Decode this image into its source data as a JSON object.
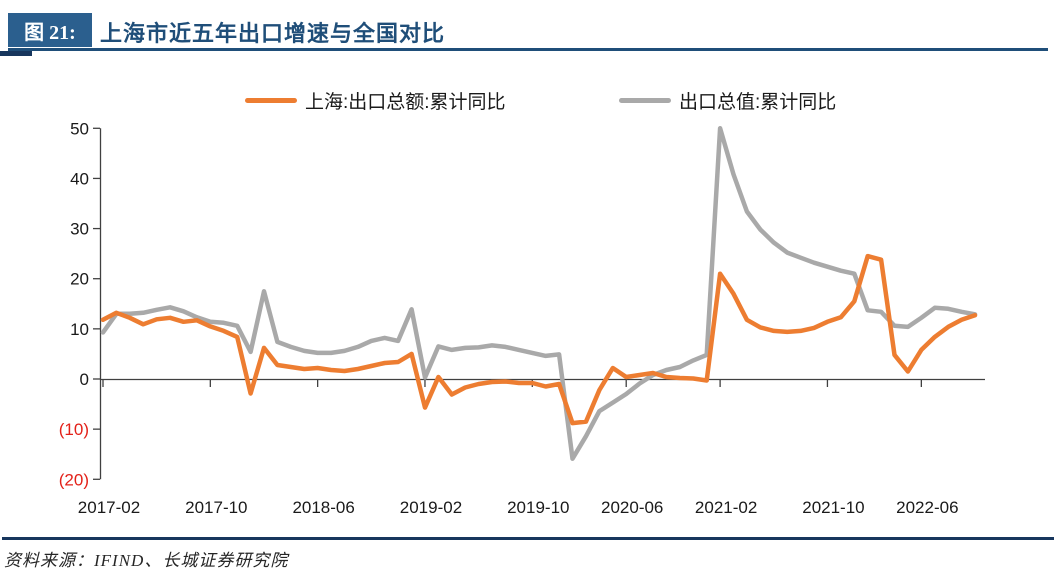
{
  "figure": {
    "tag": "图 21:",
    "title": "上海市近五年出口增速与全国对比"
  },
  "legend": [
    {
      "label": "上海:出口总额:累计同比",
      "color": "#ED7D31"
    },
    {
      "label": "出口总值:累计同比",
      "color": "#A9A9A9"
    }
  ],
  "source": "资料来源：IFIND、长城证券研究院",
  "colors": {
    "navy_box": "#2b5f8e",
    "navy_title": "#1f4e79",
    "navy_rule": "#1f4e79",
    "navy_separator": "#17365d",
    "axis_line": "#404040",
    "axis_label": "#1a1a1a",
    "negative_label": "#e32119",
    "shanghai_line": "#ED7D31",
    "china_line": "#A9A9A9"
  },
  "chart_data": {
    "type": "line",
    "title": "上海市近五年出口增速与全国对比",
    "xlabel": "",
    "ylabel": "",
    "ylim": [
      -20,
      50
    ],
    "grid": false,
    "legend_position": "top",
    "x": [
      "2017-02",
      "2017-03",
      "2017-04",
      "2017-05",
      "2017-06",
      "2017-07",
      "2017-08",
      "2017-09",
      "2017-10",
      "2017-11",
      "2017-12",
      "2018-01",
      "2018-02",
      "2018-03",
      "2018-04",
      "2018-05",
      "2018-06",
      "2018-07",
      "2018-08",
      "2018-09",
      "2018-10",
      "2018-11",
      "2018-12",
      "2019-01",
      "2019-02",
      "2019-03",
      "2019-04",
      "2019-05",
      "2019-06",
      "2019-07",
      "2019-08",
      "2019-09",
      "2019-10",
      "2019-11",
      "2019-12",
      "2020-02",
      "2020-03",
      "2020-04",
      "2020-05",
      "2020-06",
      "2020-07",
      "2020-08",
      "2020-09",
      "2020-10",
      "2020-11",
      "2020-12",
      "2021-02",
      "2021-03",
      "2021-04",
      "2021-05",
      "2021-06",
      "2021-07",
      "2021-08",
      "2021-09",
      "2021-10",
      "2021-11",
      "2021-12",
      "2022-02",
      "2022-03",
      "2022-04",
      "2022-05",
      "2022-06",
      "2022-07",
      "2022-08",
      "2022-09",
      "2022-10"
    ],
    "series": [
      {
        "name": "上海:出口总额:累计同比",
        "color": "#ED7D31",
        "values": [
          11.8,
          13.2,
          12.2,
          10.9,
          11.9,
          12.2,
          11.4,
          11.7,
          10.5,
          9.6,
          8.4,
          -2.9,
          6.2,
          2.8,
          2.4,
          2.0,
          2.2,
          1.8,
          1.6,
          2.0,
          2.6,
          3.2,
          3.4,
          5.0,
          -5.7,
          0.4,
          -3.1,
          -1.7,
          -1.0,
          -0.6,
          -0.5,
          -0.8,
          -0.8,
          -1.5,
          -1.0,
          -8.8,
          -8.5,
          -2.2,
          2.2,
          0.4,
          0.8,
          1.2,
          0.4,
          0.2,
          0.1,
          -0.3,
          21.0,
          17.0,
          11.8,
          10.3,
          9.6,
          9.4,
          9.6,
          10.2,
          11.4,
          12.3,
          15.5,
          24.5,
          23.8,
          4.8,
          1.5,
          5.8,
          8.4,
          10.4,
          11.8,
          12.7
        ]
      },
      {
        "name": "出口总值:累计同比",
        "color": "#A9A9A9",
        "values": [
          9.3,
          13.0,
          13.0,
          13.2,
          13.8,
          14.3,
          13.5,
          12.3,
          11.4,
          11.2,
          10.6,
          5.4,
          17.5,
          7.4,
          6.4,
          5.6,
          5.2,
          5.2,
          5.6,
          6.4,
          7.6,
          8.2,
          7.6,
          13.9,
          0.3,
          6.5,
          5.8,
          6.2,
          6.3,
          6.7,
          6.4,
          5.8,
          5.2,
          4.6,
          4.9,
          -15.9,
          -11.4,
          -6.4,
          -4.7,
          -3.0,
          -0.9,
          0.8,
          1.8,
          2.4,
          3.7,
          4.8,
          50.0,
          40.8,
          33.4,
          29.8,
          27.2,
          25.2,
          24.2,
          23.2,
          22.4,
          21.6,
          21.0,
          13.7,
          13.4,
          10.6,
          10.4,
          12.2,
          14.2,
          14.0,
          13.4,
          12.9
        ]
      }
    ],
    "y_ticks": [
      {
        "value": 50,
        "label": "50"
      },
      {
        "value": 40,
        "label": "40"
      },
      {
        "value": 30,
        "label": "30"
      },
      {
        "value": 20,
        "label": "20"
      },
      {
        "value": 10,
        "label": "10"
      },
      {
        "value": 0,
        "label": "0"
      },
      {
        "value": -10,
        "label": "(10)"
      },
      {
        "value": -20,
        "label": "(20)"
      }
    ],
    "x_tick_labels": [
      "2017-02",
      "2017-10",
      "2018-06",
      "2019-02",
      "2019-10",
      "2020-06",
      "2021-02",
      "2021-10",
      "2022-06"
    ],
    "x_tick_indices": [
      0,
      8,
      16,
      24,
      32,
      39,
      46,
      54,
      61
    ]
  }
}
